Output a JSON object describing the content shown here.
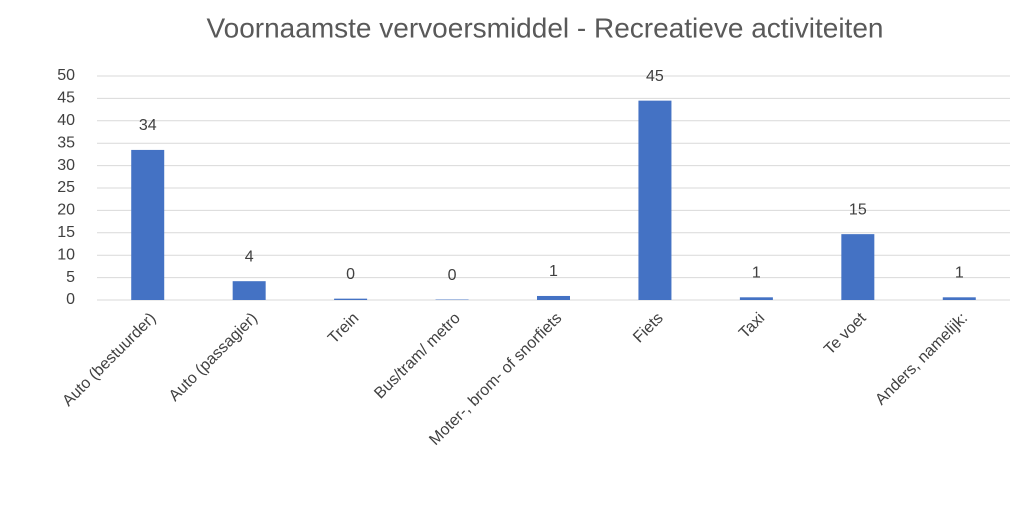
{
  "chart_data": {
    "type": "bar",
    "title": "Voornaamste vervoersmiddel - Recreatieve activiteiten",
    "categories": [
      "Auto (bestuurder)",
      "Auto (passagier)",
      "Trein",
      "Bus/tram/ metro",
      "Moter-, brom- of snorfiets",
      "Fiets",
      "Taxi",
      "Te voet",
      "Anders, namelijk:"
    ],
    "values": [
      33.5,
      4.2,
      0.3,
      0.1,
      0.9,
      44.5,
      0.6,
      14.7,
      0.6
    ],
    "value_labels": [
      "34",
      "4",
      "0",
      "0",
      "1",
      "45",
      "1",
      "15",
      "1"
    ],
    "color": "#4472c4",
    "ylim": [
      0,
      50
    ],
    "yticks": [
      0,
      5,
      10,
      15,
      20,
      25,
      30,
      35,
      40,
      45,
      50
    ],
    "grid": true
  }
}
